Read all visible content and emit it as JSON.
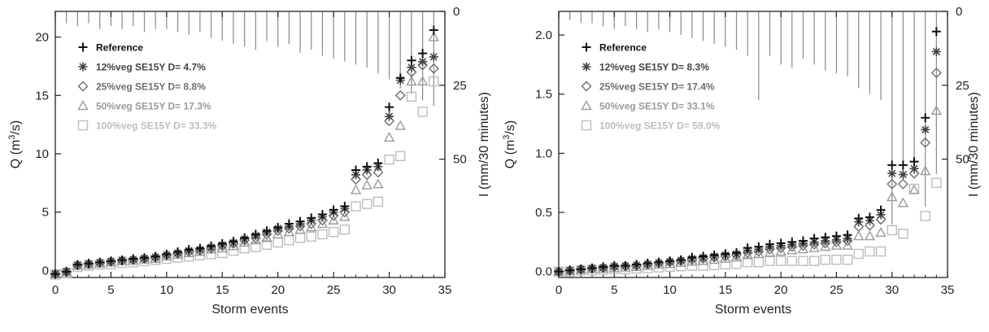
{
  "chart_data": [
    {
      "type": "scatter",
      "xlabel": "Storm events",
      "ylabel": "Q (m³/s)",
      "y2label": "I (mm/30 minutes)",
      "xlim": [
        0,
        35
      ],
      "ylim": [
        -0.6,
        22.2
      ],
      "y2lim": [
        0,
        90
      ],
      "x_ticks": [
        0,
        5,
        10,
        15,
        20,
        25,
        30,
        35
      ],
      "y_ticks": [
        0,
        5,
        10,
        15,
        20
      ],
      "y2_ticks": [
        0,
        25,
        50
      ],
      "grid": false,
      "legend_position": "top-left",
      "x": [
        0,
        1,
        2,
        3,
        4,
        5,
        6,
        7,
        8,
        9,
        10,
        11,
        12,
        13,
        14,
        15,
        16,
        17,
        18,
        19,
        20,
        21,
        22,
        23,
        24,
        25,
        26,
        27,
        28,
        29,
        30,
        31,
        32,
        33,
        34
      ],
      "series": [
        {
          "name": "Reference",
          "marker": "plus",
          "color": "#111111",
          "values": [
            -0.3,
            -0.1,
            0.5,
            0.6,
            0.7,
            0.8,
            0.9,
            1.0,
            1.1,
            1.2,
            1.4,
            1.6,
            1.8,
            1.9,
            2.1,
            2.3,
            2.5,
            2.8,
            3.1,
            3.4,
            3.7,
            4.0,
            4.2,
            4.5,
            4.8,
            5.2,
            5.5,
            8.6,
            8.9,
            9.2,
            14.0,
            16.5,
            18.0,
            18.6,
            20.6
          ]
        },
        {
          "name": "12%veg SE15Y D= 4.7%",
          "marker": "asterisk",
          "color": "#444444",
          "values": [
            -0.3,
            -0.1,
            0.5,
            0.6,
            0.7,
            0.8,
            0.9,
            0.95,
            1.05,
            1.15,
            1.35,
            1.5,
            1.7,
            1.8,
            2.0,
            2.2,
            2.4,
            2.7,
            3.0,
            3.3,
            3.6,
            3.8,
            4.0,
            4.3,
            4.6,
            5.0,
            5.3,
            8.2,
            8.6,
            8.9,
            13.2,
            16.3,
            17.4,
            17.9,
            18.3
          ]
        },
        {
          "name": "25%veg SE15Y D= 8.8%",
          "marker": "diamond",
          "color": "#6e6e6e",
          "values": [
            -0.3,
            -0.1,
            0.45,
            0.55,
            0.65,
            0.75,
            0.85,
            0.9,
            1.0,
            1.1,
            1.3,
            1.45,
            1.6,
            1.7,
            1.9,
            2.1,
            2.3,
            2.6,
            2.8,
            3.1,
            3.4,
            3.6,
            3.8,
            4.0,
            4.3,
            4.7,
            5.0,
            7.8,
            8.2,
            8.4,
            12.8,
            15.0,
            17.0,
            17.6,
            17.3
          ]
        },
        {
          "name": "50%veg SE15Y D= 17.3%",
          "marker": "triangle",
          "color": "#9a9a9a",
          "values": [
            -0.3,
            -0.15,
            0.4,
            0.5,
            0.6,
            0.7,
            0.8,
            0.85,
            0.95,
            1.0,
            1.2,
            1.35,
            1.5,
            1.6,
            1.8,
            1.9,
            2.1,
            2.4,
            2.6,
            2.8,
            3.1,
            3.3,
            3.5,
            3.7,
            4.0,
            4.3,
            4.6,
            6.9,
            7.3,
            7.4,
            11.4,
            12.4,
            16.2,
            16.2,
            20.0
          ]
        },
        {
          "name": "100%veg SE15Y D= 33.3%",
          "marker": "square",
          "color": "#bdbdbd",
          "values": [
            -0.35,
            -0.2,
            0.3,
            0.4,
            0.5,
            0.55,
            0.65,
            0.7,
            0.8,
            0.9,
            1.0,
            1.1,
            1.2,
            1.3,
            1.4,
            1.5,
            1.7,
            1.9,
            2.0,
            2.2,
            2.4,
            2.6,
            2.8,
            2.9,
            3.1,
            3.3,
            3.5,
            5.5,
            5.7,
            5.9,
            9.5,
            9.8,
            14.9,
            13.6,
            16.2
          ]
        }
      ],
      "rainfall": [
        4,
        4,
        5,
        4,
        6,
        5,
        6,
        5,
        7,
        6,
        6,
        7,
        8,
        7,
        9,
        10,
        11,
        12,
        13,
        10,
        12,
        11,
        14,
        13,
        15,
        16,
        17,
        18,
        19,
        21,
        23,
        26,
        28,
        30,
        32
      ]
    },
    {
      "type": "scatter",
      "xlabel": "Storm events",
      "ylabel": "Q (m³/s)",
      "y2label": "I (mm/30 minutes)",
      "xlim": [
        0,
        35
      ],
      "ylim": [
        -0.05,
        2.2
      ],
      "y2lim": [
        0,
        90
      ],
      "x_ticks": [
        0,
        5,
        10,
        15,
        20,
        25,
        30,
        35
      ],
      "y_ticks": [
        0.0,
        0.5,
        1.0,
        1.5,
        2.0
      ],
      "y_tick_labels": [
        "0.0",
        "0.5",
        "1.0",
        "1.5",
        "2.0"
      ],
      "y2_ticks": [
        0,
        25,
        50
      ],
      "grid": false,
      "legend_position": "top-left",
      "x": [
        0,
        1,
        2,
        3,
        4,
        5,
        6,
        7,
        8,
        9,
        10,
        11,
        12,
        13,
        14,
        15,
        16,
        17,
        18,
        19,
        20,
        21,
        22,
        23,
        24,
        25,
        26,
        27,
        28,
        29,
        30,
        31,
        32,
        33,
        34
      ],
      "series": [
        {
          "name": "Reference",
          "marker": "plus",
          "color": "#111111",
          "values": [
            0.0,
            0.01,
            0.02,
            0.03,
            0.04,
            0.05,
            0.05,
            0.06,
            0.07,
            0.08,
            0.09,
            0.1,
            0.12,
            0.13,
            0.14,
            0.15,
            0.16,
            0.2,
            0.21,
            0.23,
            0.24,
            0.25,
            0.26,
            0.28,
            0.29,
            0.3,
            0.31,
            0.45,
            0.46,
            0.52,
            0.9,
            0.9,
            0.93,
            1.3,
            2.03
          ]
        },
        {
          "name": "12%veg SE15Y D= 8.3%",
          "marker": "asterisk",
          "color": "#444444",
          "values": [
            0.0,
            0.01,
            0.02,
            0.03,
            0.035,
            0.045,
            0.05,
            0.055,
            0.065,
            0.075,
            0.085,
            0.095,
            0.11,
            0.12,
            0.13,
            0.14,
            0.15,
            0.18,
            0.19,
            0.21,
            0.22,
            0.23,
            0.24,
            0.25,
            0.26,
            0.27,
            0.28,
            0.42,
            0.43,
            0.48,
            0.83,
            0.82,
            0.87,
            1.2,
            1.86
          ]
        },
        {
          "name": "25%veg SE15Y D= 17.4%",
          "marker": "diamond",
          "color": "#6e6e6e",
          "values": [
            0.0,
            0.01,
            0.02,
            0.025,
            0.03,
            0.04,
            0.045,
            0.05,
            0.06,
            0.07,
            0.08,
            0.09,
            0.1,
            0.11,
            0.12,
            0.13,
            0.14,
            0.16,
            0.17,
            0.19,
            0.2,
            0.21,
            0.22,
            0.23,
            0.24,
            0.25,
            0.26,
            0.38,
            0.39,
            0.44,
            0.74,
            0.74,
            0.83,
            1.09,
            1.68
          ]
        },
        {
          "name": "50%veg SE15Y D= 33.1%",
          "marker": "triangle",
          "color": "#9a9a9a",
          "values": [
            0.0,
            0.005,
            0.015,
            0.02,
            0.025,
            0.03,
            0.035,
            0.04,
            0.05,
            0.06,
            0.065,
            0.075,
            0.085,
            0.09,
            0.1,
            0.11,
            0.12,
            0.14,
            0.15,
            0.16,
            0.17,
            0.18,
            0.19,
            0.2,
            0.21,
            0.22,
            0.22,
            0.3,
            0.3,
            0.33,
            0.63,
            0.58,
            0.69,
            0.85,
            1.36
          ]
        },
        {
          "name": "100%veg SE15Y D= 59.0%",
          "marker": "square",
          "color": "#bdbdbd",
          "values": [
            0.0,
            0.0,
            0.01,
            0.01,
            0.015,
            0.02,
            0.02,
            0.025,
            0.03,
            0.035,
            0.04,
            0.045,
            0.05,
            0.05,
            0.055,
            0.06,
            0.065,
            0.08,
            0.08,
            0.09,
            0.09,
            0.09,
            0.09,
            0.09,
            0.1,
            0.1,
            0.1,
            0.15,
            0.17,
            0.17,
            0.35,
            0.32,
            0.7,
            0.47,
            0.75
          ]
        }
      ],
      "rainfall": [
        2,
        3,
        4,
        4,
        5,
        6,
        5,
        6,
        7,
        6,
        7,
        8,
        9,
        10,
        11,
        12,
        13,
        15,
        30,
        15,
        18,
        19,
        16,
        18,
        20,
        21,
        22,
        26,
        28,
        30,
        72,
        56,
        55,
        66,
        55
      ]
    }
  ]
}
